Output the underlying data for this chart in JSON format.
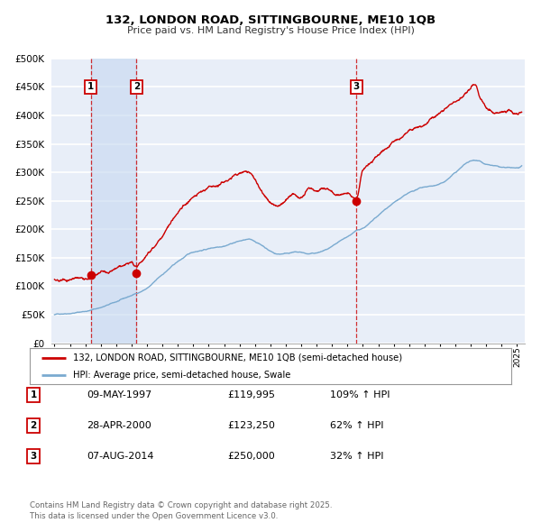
{
  "title": "132, LONDON ROAD, SITTINGBOURNE, ME10 1QB",
  "subtitle": "Price paid vs. HM Land Registry's House Price Index (HPI)",
  "legend_line1": "132, LONDON ROAD, SITTINGBOURNE, ME10 1QB (semi-detached house)",
  "legend_line2": "HPI: Average price, semi-detached house, Swale",
  "footer": "Contains HM Land Registry data © Crown copyright and database right 2025.\nThis data is licensed under the Open Government Licence v3.0.",
  "sale_color": "#cc0000",
  "hpi_color": "#7aaad0",
  "sale_points": [
    {
      "date": 1997.36,
      "value": 119995,
      "label": "1"
    },
    {
      "date": 2000.32,
      "value": 123250,
      "label": "2"
    },
    {
      "date": 2014.59,
      "value": 250000,
      "label": "3"
    }
  ],
  "vline_dates": [
    1997.36,
    2000.32,
    2014.59
  ],
  "shade_x0": 1997.36,
  "shade_x1": 2000.32,
  "table_rows": [
    {
      "num": "1",
      "date": "09-MAY-1997",
      "price": "£119,995",
      "hpi": "109% ↑ HPI"
    },
    {
      "num": "2",
      "date": "28-APR-2000",
      "price": "£123,250",
      "hpi": "62% ↑ HPI"
    },
    {
      "num": "3",
      "date": "07-AUG-2014",
      "price": "£250,000",
      "hpi": "32% ↑ HPI"
    }
  ],
  "xlim": [
    1994.8,
    2025.5
  ],
  "ylim": [
    0,
    500000
  ],
  "yticks": [
    0,
    50000,
    100000,
    150000,
    200000,
    250000,
    300000,
    350000,
    400000,
    450000,
    500000
  ],
  "ytick_labels": [
    "£0",
    "£50K",
    "£100K",
    "£150K",
    "£200K",
    "£250K",
    "£300K",
    "£350K",
    "£400K",
    "£450K",
    "£500K"
  ],
  "bg_color": "#e8eef8",
  "grid_color": "#ffffff"
}
